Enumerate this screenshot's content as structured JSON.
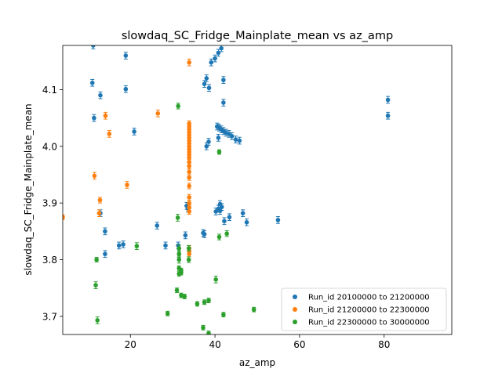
{
  "chart_data": {
    "type": "scatter",
    "title": "slowdaq_SC_Fridge_Mainplate_mean vs az_amp",
    "xlabel": "az_amp",
    "ylabel": "slowdaq_SC_Fridge_Mainplate_mean",
    "xlim": [
      4,
      96
    ],
    "ylim": [
      3.668,
      4.178
    ],
    "xticks": [
      20,
      40,
      60,
      80
    ],
    "yticks": [
      3.7,
      3.8,
      3.9,
      4.0,
      4.1
    ],
    "xtick_labels": [
      "20",
      "40",
      "60",
      "80"
    ],
    "ytick_labels": [
      "3.7",
      "3.8",
      "3.9",
      "4.0",
      "4.1"
    ],
    "grid": false,
    "legend_position": "lower-right",
    "series": [
      {
        "name": "Run_id 20100000 to 21200000",
        "color": "#1f77b4",
        "points": [
          [
            11.2,
            4.178,
            0.006
          ],
          [
            18.9,
            4.16,
            0.006
          ],
          [
            11.0,
            4.112,
            0.006
          ],
          [
            12.9,
            4.09,
            0.006
          ],
          [
            18.9,
            4.101,
            0.006
          ],
          [
            11.4,
            4.05,
            0.006
          ],
          [
            20.9,
            4.026,
            0.006
          ],
          [
            12.9,
            3.882,
            0.006
          ],
          [
            14.0,
            3.85,
            0.006
          ],
          [
            17.3,
            3.825,
            0.006
          ],
          [
            18.3,
            3.827,
            0.006
          ],
          [
            14.0,
            3.81,
            0.006
          ],
          [
            26.3,
            3.86,
            0.006
          ],
          [
            28.3,
            3.825,
            0.006
          ],
          [
            31.3,
            3.825,
            0.006
          ],
          [
            33.0,
            3.843,
            0.006
          ],
          [
            33.3,
            3.895,
            0.006
          ],
          [
            33.6,
            3.89,
            0.006
          ],
          [
            37.2,
            3.847,
            0.006
          ],
          [
            37.5,
            3.845,
            0.006
          ],
          [
            37.5,
            4.11,
            0.006
          ],
          [
            38.0,
            4.12,
            0.006
          ],
          [
            38.6,
            4.103,
            0.006
          ],
          [
            39.1,
            4.148,
            0.006
          ],
          [
            40.0,
            4.155,
            0.006
          ],
          [
            40.8,
            4.165,
            0.006
          ],
          [
            41.5,
            4.173,
            0.006
          ],
          [
            42.0,
            4.117,
            0.006
          ],
          [
            42.0,
            4.077,
            0.006
          ],
          [
            38.0,
            4.0,
            0.006
          ],
          [
            38.5,
            4.008,
            0.006
          ],
          [
            40.8,
            4.015,
            0.006
          ],
          [
            40.5,
            4.035,
            0.006
          ],
          [
            41.0,
            4.033,
            0.006
          ],
          [
            41.5,
            4.03,
            0.006
          ],
          [
            42.0,
            4.027,
            0.006
          ],
          [
            42.6,
            4.024,
            0.006
          ],
          [
            43.3,
            4.022,
            0.006
          ],
          [
            44.0,
            4.018,
            0.006
          ],
          [
            44.9,
            4.012,
            0.006
          ],
          [
            45.8,
            4.01,
            0.006
          ],
          [
            40.8,
            3.89,
            0.006
          ],
          [
            41.2,
            3.886,
            0.006
          ],
          [
            41.6,
            3.893,
            0.006
          ],
          [
            41.2,
            3.898,
            0.006
          ],
          [
            40.2,
            3.885,
            0.006
          ],
          [
            42.2,
            3.868,
            0.006
          ],
          [
            43.4,
            3.875,
            0.006
          ],
          [
            46.6,
            3.882,
            0.006
          ],
          [
            47.5,
            3.866,
            0.006
          ],
          [
            54.9,
            3.87,
            0.006
          ],
          [
            80.9,
            4.082,
            0.006
          ],
          [
            80.9,
            4.054,
            0.006
          ]
        ]
      },
      {
        "name": "Run_id 21200000 to 22300000",
        "color": "#ff7f0e",
        "points": [
          [
            4.0,
            3.875,
            0.004
          ],
          [
            11.5,
            3.948,
            0.006
          ],
          [
            12.8,
            3.905,
            0.005
          ],
          [
            12.6,
            3.882,
            0.006
          ],
          [
            14.1,
            4.054,
            0.006
          ],
          [
            15.0,
            4.022,
            0.006
          ],
          [
            19.2,
            3.932,
            0.006
          ],
          [
            26.5,
            4.058,
            0.006
          ],
          [
            33.9,
            4.148,
            0.006
          ],
          [
            33.9,
            4.04,
            0.005
          ],
          [
            33.9,
            4.035,
            0.005
          ],
          [
            33.9,
            4.03,
            0.005
          ],
          [
            33.9,
            4.025,
            0.005
          ],
          [
            33.9,
            4.02,
            0.005
          ],
          [
            33.9,
            4.015,
            0.005
          ],
          [
            33.9,
            4.01,
            0.005
          ],
          [
            33.9,
            4.005,
            0.005
          ],
          [
            33.9,
            4.0,
            0.005
          ],
          [
            33.9,
            3.995,
            0.005
          ],
          [
            33.9,
            3.99,
            0.005
          ],
          [
            33.9,
            3.985,
            0.005
          ],
          [
            33.9,
            3.98,
            0.005
          ],
          [
            33.9,
            3.972,
            0.005
          ],
          [
            33.9,
            3.965,
            0.005
          ],
          [
            33.9,
            3.955,
            0.005
          ],
          [
            33.9,
            3.945,
            0.005
          ],
          [
            33.9,
            3.93,
            0.005
          ],
          [
            33.9,
            3.91,
            0.005
          ],
          [
            33.9,
            3.9,
            0.005
          ],
          [
            33.9,
            3.892,
            0.005
          ],
          [
            33.9,
            3.885,
            0.005
          ],
          [
            33.9,
            3.82,
            0.005
          ],
          [
            33.9,
            3.815,
            0.005
          ],
          [
            33.9,
            3.81,
            0.005
          ]
        ]
      },
      {
        "name": "Run_id 22300000 to 30000000",
        "color": "#2ca02c",
        "points": [
          [
            12.0,
            3.8,
            0.004
          ],
          [
            11.8,
            3.755,
            0.006
          ],
          [
            12.2,
            3.693,
            0.006
          ],
          [
            21.5,
            3.824,
            0.006
          ],
          [
            28.8,
            3.705,
            0.004
          ],
          [
            31.3,
            4.071,
            0.005
          ],
          [
            31.2,
            3.874,
            0.006
          ],
          [
            31.0,
            3.746,
            0.004
          ],
          [
            31.5,
            3.82,
            0.006
          ],
          [
            31.5,
            3.81,
            0.006
          ],
          [
            31.5,
            3.8,
            0.006
          ],
          [
            31.5,
            3.785,
            0.004
          ],
          [
            31.5,
            3.775,
            0.004
          ],
          [
            32.0,
            3.781,
            0.004
          ],
          [
            32.0,
            3.777,
            0.004
          ],
          [
            32.0,
            3.737,
            0.004
          ],
          [
            32.8,
            3.735,
            0.004
          ],
          [
            33.8,
            3.8,
            0.005
          ],
          [
            33.8,
            3.82,
            0.005
          ],
          [
            35.8,
            3.722,
            0.004
          ],
          [
            37.2,
            3.68,
            0.004
          ],
          [
            37.5,
            3.725,
            0.004
          ],
          [
            38.5,
            3.728,
            0.004
          ],
          [
            38.5,
            3.67,
            0.004
          ],
          [
            40.2,
            3.765,
            0.006
          ],
          [
            41.0,
            3.99,
            0.004
          ],
          [
            41.0,
            3.84,
            0.005
          ],
          [
            42.0,
            3.703,
            0.004
          ],
          [
            42.8,
            3.846,
            0.005
          ],
          [
            49.2,
            3.712,
            0.004
          ]
        ]
      }
    ]
  }
}
